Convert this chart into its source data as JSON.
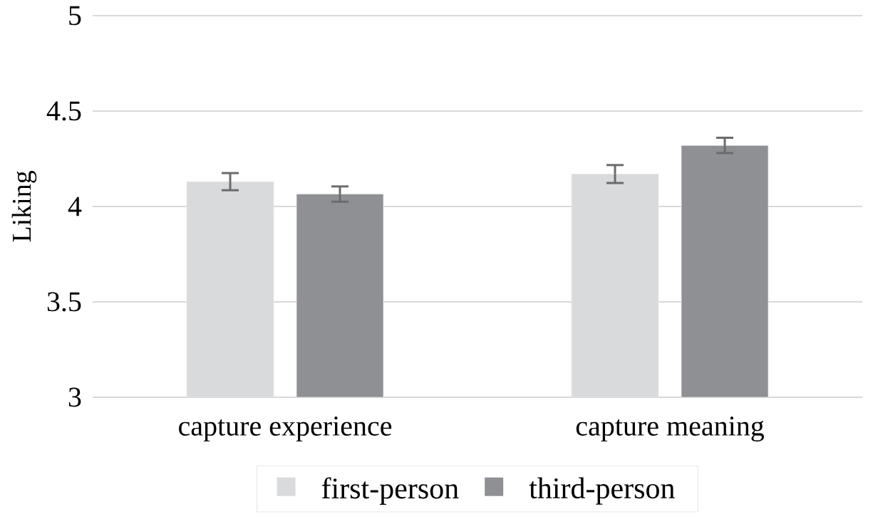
{
  "chart_data": {
    "type": "bar",
    "ylabel": "Liking",
    "categories": [
      "capture experience",
      "capture meaning"
    ],
    "series": [
      {
        "name": "first-person",
        "color": "#d9dadb",
        "values": [
          4.13,
          4.17
        ],
        "errors": [
          0.045,
          0.047
        ]
      },
      {
        "name": "third-person",
        "color": "#8f9094",
        "values": [
          4.065,
          4.32
        ],
        "errors": [
          0.04,
          0.04
        ]
      }
    ],
    "ylim": [
      3,
      5
    ],
    "yticks": [
      3,
      3.5,
      4,
      4.5,
      5
    ],
    "grid": "y",
    "legend": "bottom"
  }
}
